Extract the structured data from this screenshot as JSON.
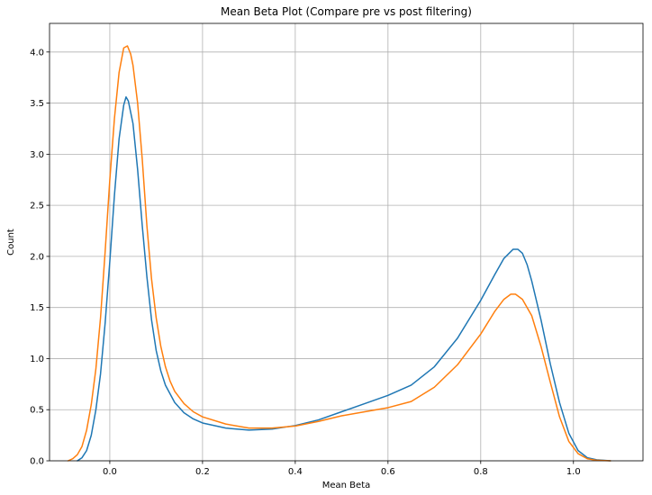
{
  "chart_data": {
    "type": "line",
    "title": "Mean Beta Plot (Compare pre vs post filtering)",
    "xlabel": "Mean Beta",
    "ylabel": "Count",
    "xlim": [
      -0.13,
      1.15
    ],
    "ylim": [
      0,
      4.28
    ],
    "xticks": [
      0.0,
      0.2,
      0.4,
      0.6,
      0.8,
      1.0
    ],
    "xtick_labels": [
      "0.0",
      "0.2",
      "0.4",
      "0.6",
      "0.8",
      "1.0"
    ],
    "yticks": [
      0.0,
      0.5,
      1.0,
      1.5,
      2.0,
      2.5,
      3.0,
      3.5,
      4.0
    ],
    "ytick_labels": [
      "0.0",
      "0.5",
      "1.0",
      "1.5",
      "2.0",
      "2.5",
      "3.0",
      "3.5",
      "4.0"
    ],
    "grid": true,
    "series": [
      {
        "color": "#1f77b4",
        "points": [
          [
            -0.07,
            0.0
          ],
          [
            -0.06,
            0.03
          ],
          [
            -0.05,
            0.1
          ],
          [
            -0.04,
            0.25
          ],
          [
            -0.03,
            0.5
          ],
          [
            -0.02,
            0.85
          ],
          [
            -0.01,
            1.35
          ],
          [
            0.0,
            1.95
          ],
          [
            0.01,
            2.6
          ],
          [
            0.02,
            3.15
          ],
          [
            0.03,
            3.48
          ],
          [
            0.035,
            3.56
          ],
          [
            0.04,
            3.52
          ],
          [
            0.05,
            3.3
          ],
          [
            0.06,
            2.85
          ],
          [
            0.07,
            2.3
          ],
          [
            0.08,
            1.8
          ],
          [
            0.09,
            1.38
          ],
          [
            0.1,
            1.08
          ],
          [
            0.11,
            0.88
          ],
          [
            0.12,
            0.74
          ],
          [
            0.14,
            0.57
          ],
          [
            0.16,
            0.47
          ],
          [
            0.18,
            0.41
          ],
          [
            0.2,
            0.37
          ],
          [
            0.25,
            0.32
          ],
          [
            0.3,
            0.3
          ],
          [
            0.35,
            0.31
          ],
          [
            0.4,
            0.345
          ],
          [
            0.45,
            0.4
          ],
          [
            0.5,
            0.48
          ],
          [
            0.55,
            0.56
          ],
          [
            0.6,
            0.64
          ],
          [
            0.65,
            0.74
          ],
          [
            0.7,
            0.92
          ],
          [
            0.75,
            1.2
          ],
          [
            0.8,
            1.57
          ],
          [
            0.83,
            1.82
          ],
          [
            0.85,
            1.98
          ],
          [
            0.87,
            2.07
          ],
          [
            0.88,
            2.07
          ],
          [
            0.89,
            2.03
          ],
          [
            0.9,
            1.92
          ],
          [
            0.91,
            1.76
          ],
          [
            0.93,
            1.38
          ],
          [
            0.95,
            0.95
          ],
          [
            0.97,
            0.57
          ],
          [
            0.99,
            0.27
          ],
          [
            1.01,
            0.1
          ],
          [
            1.03,
            0.03
          ],
          [
            1.05,
            0.01
          ],
          [
            1.08,
            0.0
          ]
        ]
      },
      {
        "color": "#ff7f0e",
        "points": [
          [
            -0.09,
            0.0
          ],
          [
            -0.08,
            0.02
          ],
          [
            -0.07,
            0.06
          ],
          [
            -0.06,
            0.14
          ],
          [
            -0.05,
            0.3
          ],
          [
            -0.04,
            0.55
          ],
          [
            -0.03,
            0.9
          ],
          [
            -0.02,
            1.4
          ],
          [
            -0.01,
            2.05
          ],
          [
            0.0,
            2.75
          ],
          [
            0.01,
            3.35
          ],
          [
            0.02,
            3.8
          ],
          [
            0.03,
            4.04
          ],
          [
            0.038,
            4.06
          ],
          [
            0.045,
            3.98
          ],
          [
            0.05,
            3.87
          ],
          [
            0.06,
            3.5
          ],
          [
            0.07,
            2.95
          ],
          [
            0.08,
            2.3
          ],
          [
            0.09,
            1.78
          ],
          [
            0.1,
            1.4
          ],
          [
            0.11,
            1.12
          ],
          [
            0.12,
            0.92
          ],
          [
            0.13,
            0.78
          ],
          [
            0.14,
            0.68
          ],
          [
            0.16,
            0.56
          ],
          [
            0.18,
            0.48
          ],
          [
            0.2,
            0.43
          ],
          [
            0.25,
            0.36
          ],
          [
            0.3,
            0.32
          ],
          [
            0.35,
            0.32
          ],
          [
            0.4,
            0.34
          ],
          [
            0.45,
            0.385
          ],
          [
            0.5,
            0.44
          ],
          [
            0.55,
            0.48
          ],
          [
            0.6,
            0.52
          ],
          [
            0.65,
            0.58
          ],
          [
            0.7,
            0.72
          ],
          [
            0.75,
            0.94
          ],
          [
            0.8,
            1.24
          ],
          [
            0.83,
            1.46
          ],
          [
            0.85,
            1.58
          ],
          [
            0.865,
            1.63
          ],
          [
            0.875,
            1.63
          ],
          [
            0.89,
            1.58
          ],
          [
            0.91,
            1.42
          ],
          [
            0.93,
            1.12
          ],
          [
            0.95,
            0.77
          ],
          [
            0.97,
            0.43
          ],
          [
            0.99,
            0.19
          ],
          [
            1.01,
            0.07
          ],
          [
            1.03,
            0.02
          ],
          [
            1.05,
            0.005
          ],
          [
            1.08,
            0.0
          ]
        ]
      }
    ]
  }
}
